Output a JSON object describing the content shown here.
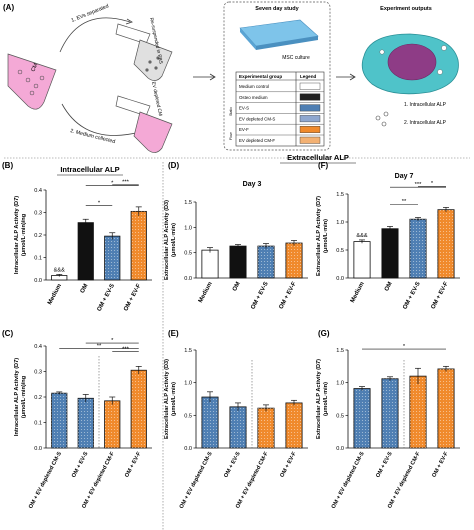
{
  "schematic": {
    "panel_label": "(A)",
    "arrow1": "1. EVs separated",
    "arrow2": "2. Medium collected",
    "resuspend": "Re-suspended in PBS",
    "cm": "CM",
    "ev_depleted_cm": "EV depleted CM",
    "study_title": "Seven day study",
    "msc_culture": "MSC culture",
    "table_header_group": "Experimental group",
    "table_header_legend": "Legend",
    "groups": [
      {
        "label": "Medium control",
        "color": "#ffffff"
      },
      {
        "label": "Osteo medium",
        "color": "#222222"
      },
      {
        "label": "EV-S",
        "color": "#4f7fb3"
      },
      {
        "label": "EV depleted CM-S",
        "color": "#8fa7cf"
      },
      {
        "label": "EV-F",
        "color": "#f08a2c"
      },
      {
        "label": "EV depleted CM-F",
        "color": "#f3b173"
      }
    ],
    "side_label_static": "Static",
    "side_label_flow": "Flow",
    "outputs_title": "Experiment outputs",
    "output1": "1. Intracellular ALP",
    "output2": "2. Intracellular ALP"
  },
  "section_intracellular": "Intracellular ALP",
  "section_extracellular": "Extracellular ALP",
  "chart_data": [
    {
      "id": "B",
      "panel_label": "(B)",
      "type": "bar",
      "ylabel": "Intracellular ALP Activity (D7)\n(μmol/L·min)/ng",
      "categories": [
        "Medium",
        "OM",
        "OM + EV-S",
        "OM + EV-F"
      ],
      "values": [
        0.02,
        0.255,
        0.195,
        0.305
      ],
      "errors": [
        0.005,
        0.015,
        0.015,
        0.02
      ],
      "colors": [
        "#ffffff",
        "#111111",
        "#4f7fb3",
        "#f08a2c"
      ],
      "ylim": [
        0,
        0.4
      ],
      "yticks": [
        0.0,
        0.1,
        0.2,
        0.3,
        0.4
      ],
      "significance": [
        {
          "text": "&&&",
          "category_index": 0
        },
        {
          "text": "*",
          "from": 1,
          "to": 2
        },
        {
          "text": "*",
          "from": 1,
          "to": 3
        },
        {
          "text": "***",
          "from": 2,
          "to": 3
        }
      ]
    },
    {
      "id": "D",
      "panel_label": "(D)",
      "type": "bar",
      "title": "Day 3",
      "ylabel": "Extracellular ALP Activity (D3)\n(μmol/L·min)",
      "categories": [
        "Medium",
        "OM",
        "OM + EV-S",
        "OM + EV-F"
      ],
      "values": [
        0.55,
        0.63,
        0.63,
        0.69
      ],
      "errors": [
        0.05,
        0.03,
        0.05,
        0.05
      ],
      "colors": [
        "#ffffff",
        "#111111",
        "#4f7fb3",
        "#f08a2c"
      ],
      "ylim": [
        0,
        1.5
      ],
      "yticks": [
        0.0,
        0.5,
        1.0,
        1.5
      ]
    },
    {
      "id": "F",
      "panel_label": "(F)",
      "type": "bar",
      "title": "Day 7",
      "ylabel": "Extracellular ALP Activity (D7)\n(μmol/L·min)",
      "categories": [
        "Medium",
        "OM",
        "OM + EV-S",
        "OM + EV-F"
      ],
      "values": [
        0.65,
        0.88,
        1.05,
        1.22
      ],
      "errors": [
        0.03,
        0.04,
        0.03,
        0.04
      ],
      "colors": [
        "#ffffff",
        "#111111",
        "#4f7fb3",
        "#f08a2c"
      ],
      "ylim": [
        0,
        1.5
      ],
      "yticks": [
        0.0,
        0.5,
        1.0,
        1.5
      ],
      "significance": [
        {
          "text": "&&&",
          "category_index": 0
        },
        {
          "text": "**",
          "from": 1,
          "to": 2
        },
        {
          "text": "***",
          "from": 1,
          "to": 3
        },
        {
          "text": "*",
          "from": 2,
          "to": 3
        }
      ]
    },
    {
      "id": "C",
      "panel_label": "(C)",
      "type": "bar",
      "ylabel": "Intracellular ALP Activity (D7)\n(μmol/L·min)/ng",
      "categories": [
        "OM + EV depleted CM-S",
        "OM + EV-S",
        "OM + EV depleted CM-F",
        "OM + EV-F"
      ],
      "values": [
        0.215,
        0.195,
        0.185,
        0.305
      ],
      "errors": [
        0.005,
        0.015,
        0.015,
        0.015
      ],
      "colors": [
        "#4f7fb3",
        "#4f7fb3",
        "#f08a2c",
        "#f08a2c"
      ],
      "ylim": [
        0,
        0.4
      ],
      "yticks": [
        0.0,
        0.1,
        0.2,
        0.3,
        0.4
      ],
      "significance": [
        {
          "text": "**",
          "from": 0,
          "to": 3
        },
        {
          "text": "***",
          "from": 2,
          "to": 3
        },
        {
          "text": "*",
          "from": 1,
          "to": 3
        }
      ]
    },
    {
      "id": "E",
      "panel_label": "(E)",
      "type": "bar",
      "ylabel": "Extracellular ALP Activity (D3)\n(μmol/L·min)",
      "categories": [
        "OM + EV depleted CM-S",
        "OM + EV-S",
        "OM + EV depleted CM-F",
        "OM + EV-F"
      ],
      "values": [
        0.78,
        0.63,
        0.61,
        0.69
      ],
      "errors": [
        0.08,
        0.06,
        0.05,
        0.04
      ],
      "colors": [
        "#4f7fb3",
        "#4f7fb3",
        "#f08a2c",
        "#f08a2c"
      ],
      "ylim": [
        0,
        1.5
      ],
      "yticks": [
        0.0,
        0.5,
        1.0,
        1.5
      ]
    },
    {
      "id": "G",
      "panel_label": "(G)",
      "type": "bar",
      "ylabel": "Extracellular ALP Activity (D7)\n(μmol/L·min)",
      "categories": [
        "OM + EV depleted CM-S",
        "OM + EV-S",
        "OM + EV depleted CM-F",
        "OM + EV-F"
      ],
      "values": [
        0.91,
        1.06,
        1.1,
        1.21
      ],
      "errors": [
        0.03,
        0.03,
        0.12,
        0.04
      ],
      "colors": [
        "#4f7fb3",
        "#4f7fb3",
        "#f08a2c",
        "#f08a2c"
      ],
      "ylim": [
        0,
        1.5
      ],
      "yticks": [
        0.0,
        0.5,
        1.0,
        1.5
      ],
      "significance": [
        {
          "text": "*",
          "from": 0,
          "to": 3
        }
      ]
    }
  ]
}
